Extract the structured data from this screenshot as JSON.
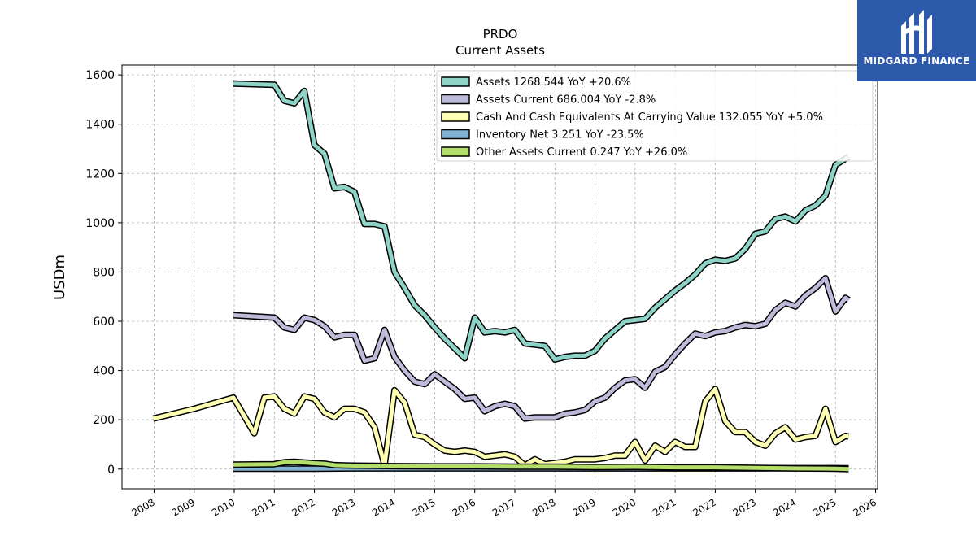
{
  "logo": {
    "text": "MIDGARD FINANCE",
    "icon": "midgard-monogram-icon",
    "background": "#2c59a9"
  },
  "chart_data": {
    "type": "line",
    "title": "PRDO",
    "subtitle": "Current  Assets",
    "xlabel": "",
    "ylabel": "USDm",
    "xlim": [
      2007.2,
      2026.05
    ],
    "ylim": [
      -80,
      1640
    ],
    "xticks": [
      "2008",
      "2009",
      "2010",
      "2011",
      "2012",
      "2013",
      "2014",
      "2015",
      "2016",
      "2017",
      "2018",
      "2019",
      "2020",
      "2021",
      "2022",
      "2023",
      "2024",
      "2025",
      "2026"
    ],
    "yticks": [
      0,
      200,
      400,
      600,
      800,
      1000,
      1200,
      1400,
      1600
    ],
    "grid": true,
    "legend_position": "top-right",
    "series": [
      {
        "name": "Assets",
        "legend": "Assets  1268.544 YoY +20.6%",
        "color": "#8dd3c7",
        "points": [
          [
            2009.98,
            1565
          ],
          [
            2011.0,
            1560
          ],
          [
            2011.25,
            1495
          ],
          [
            2011.5,
            1485
          ],
          [
            2011.75,
            1535
          ],
          [
            2012.0,
            1315
          ],
          [
            2012.25,
            1280
          ],
          [
            2012.5,
            1140
          ],
          [
            2012.75,
            1145
          ],
          [
            2013.0,
            1125
          ],
          [
            2013.25,
            995
          ],
          [
            2013.5,
            995
          ],
          [
            2013.75,
            985
          ],
          [
            2014.0,
            800
          ],
          [
            2014.25,
            735
          ],
          [
            2014.5,
            665
          ],
          [
            2014.75,
            625
          ],
          [
            2015.0,
            575
          ],
          [
            2015.25,
            530
          ],
          [
            2015.5,
            490
          ],
          [
            2015.75,
            450
          ],
          [
            2016.0,
            615
          ],
          [
            2016.25,
            555
          ],
          [
            2016.5,
            560
          ],
          [
            2016.75,
            555
          ],
          [
            2017.0,
            565
          ],
          [
            2017.25,
            510
          ],
          [
            2017.5,
            505
          ],
          [
            2017.75,
            500
          ],
          [
            2018.0,
            445
          ],
          [
            2018.25,
            455
          ],
          [
            2018.5,
            460
          ],
          [
            2018.75,
            460
          ],
          [
            2019.0,
            480
          ],
          [
            2019.25,
            530
          ],
          [
            2019.5,
            565
          ],
          [
            2019.75,
            600
          ],
          [
            2020.0,
            605
          ],
          [
            2020.25,
            610
          ],
          [
            2020.5,
            655
          ],
          [
            2020.75,
            690
          ],
          [
            2021.0,
            725
          ],
          [
            2021.25,
            755
          ],
          [
            2021.5,
            790
          ],
          [
            2021.75,
            835
          ],
          [
            2022.0,
            850
          ],
          [
            2022.25,
            845
          ],
          [
            2022.5,
            855
          ],
          [
            2022.75,
            895
          ],
          [
            2023.0,
            955
          ],
          [
            2023.25,
            965
          ],
          [
            2023.5,
            1015
          ],
          [
            2023.75,
            1025
          ],
          [
            2024.0,
            1005
          ],
          [
            2024.25,
            1050
          ],
          [
            2024.5,
            1070
          ],
          [
            2024.75,
            1110
          ],
          [
            2025.0,
            1235
          ],
          [
            2025.25,
            1260
          ],
          [
            2025.33,
            1268
          ]
        ]
      },
      {
        "name": "Assets Current",
        "legend": "Assets Current  686.004 YoY -2.8%",
        "color": "#bebada",
        "points": [
          [
            2009.98,
            625
          ],
          [
            2011.0,
            615
          ],
          [
            2011.25,
            575
          ],
          [
            2011.5,
            565
          ],
          [
            2011.75,
            615
          ],
          [
            2012.0,
            605
          ],
          [
            2012.25,
            580
          ],
          [
            2012.5,
            535
          ],
          [
            2012.75,
            545
          ],
          [
            2013.0,
            545
          ],
          [
            2013.25,
            440
          ],
          [
            2013.5,
            450
          ],
          [
            2013.75,
            565
          ],
          [
            2014.0,
            455
          ],
          [
            2014.25,
            400
          ],
          [
            2014.5,
            355
          ],
          [
            2014.75,
            345
          ],
          [
            2015.0,
            385
          ],
          [
            2015.25,
            355
          ],
          [
            2015.5,
            325
          ],
          [
            2015.75,
            285
          ],
          [
            2016.0,
            290
          ],
          [
            2016.25,
            235
          ],
          [
            2016.5,
            255
          ],
          [
            2016.75,
            265
          ],
          [
            2017.0,
            255
          ],
          [
            2017.25,
            205
          ],
          [
            2017.5,
            210
          ],
          [
            2017.75,
            210
          ],
          [
            2018.0,
            210
          ],
          [
            2018.25,
            225
          ],
          [
            2018.5,
            230
          ],
          [
            2018.75,
            240
          ],
          [
            2019.0,
            275
          ],
          [
            2019.25,
            290
          ],
          [
            2019.5,
            330
          ],
          [
            2019.75,
            360
          ],
          [
            2020.0,
            365
          ],
          [
            2020.25,
            330
          ],
          [
            2020.5,
            395
          ],
          [
            2020.75,
            415
          ],
          [
            2021.0,
            465
          ],
          [
            2021.25,
            510
          ],
          [
            2021.5,
            550
          ],
          [
            2021.75,
            540
          ],
          [
            2022.0,
            555
          ],
          [
            2022.25,
            560
          ],
          [
            2022.5,
            575
          ],
          [
            2022.75,
            585
          ],
          [
            2023.0,
            580
          ],
          [
            2023.25,
            590
          ],
          [
            2023.5,
            645
          ],
          [
            2023.75,
            675
          ],
          [
            2024.0,
            660
          ],
          [
            2024.25,
            705
          ],
          [
            2024.5,
            735
          ],
          [
            2024.75,
            775
          ],
          [
            2025.0,
            640
          ],
          [
            2025.25,
            695
          ],
          [
            2025.33,
            686
          ]
        ]
      },
      {
        "name": "Cash And Cash Equivalents At Carrying Value",
        "legend": "Cash And Cash Equivalents At Carrying Value  132.055 YoY +5.0%",
        "color": "#ffffb3",
        "points": [
          [
            2007.98,
            205
          ],
          [
            2009.0,
            245
          ],
          [
            2009.98,
            290
          ],
          [
            2010.25,
            215
          ],
          [
            2010.5,
            145
          ],
          [
            2010.75,
            290
          ],
          [
            2011.0,
            295
          ],
          [
            2011.25,
            245
          ],
          [
            2011.5,
            225
          ],
          [
            2011.75,
            295
          ],
          [
            2012.0,
            285
          ],
          [
            2012.25,
            230
          ],
          [
            2012.5,
            210
          ],
          [
            2012.75,
            245
          ],
          [
            2013.0,
            245
          ],
          [
            2013.25,
            230
          ],
          [
            2013.5,
            170
          ],
          [
            2013.75,
            15
          ],
          [
            2014.0,
            320
          ],
          [
            2014.25,
            270
          ],
          [
            2014.5,
            140
          ],
          [
            2014.75,
            130
          ],
          [
            2015.0,
            100
          ],
          [
            2015.25,
            75
          ],
          [
            2015.5,
            70
          ],
          [
            2015.75,
            75
          ],
          [
            2016.0,
            70
          ],
          [
            2016.25,
            50
          ],
          [
            2016.5,
            55
          ],
          [
            2016.75,
            60
          ],
          [
            2017.0,
            50
          ],
          [
            2017.25,
            15
          ],
          [
            2017.5,
            40
          ],
          [
            2017.75,
            20
          ],
          [
            2018.0,
            25
          ],
          [
            2018.25,
            30
          ],
          [
            2018.5,
            40
          ],
          [
            2018.75,
            40
          ],
          [
            2019.0,
            40
          ],
          [
            2019.25,
            45
          ],
          [
            2019.5,
            55
          ],
          [
            2019.75,
            55
          ],
          [
            2020.0,
            110
          ],
          [
            2020.25,
            35
          ],
          [
            2020.5,
            95
          ],
          [
            2020.75,
            70
          ],
          [
            2021.0,
            110
          ],
          [
            2021.25,
            90
          ],
          [
            2021.5,
            90
          ],
          [
            2021.75,
            275
          ],
          [
            2022.0,
            325
          ],
          [
            2022.25,
            195
          ],
          [
            2022.5,
            150
          ],
          [
            2022.75,
            150
          ],
          [
            2023.0,
            110
          ],
          [
            2023.25,
            95
          ],
          [
            2023.5,
            145
          ],
          [
            2023.75,
            170
          ],
          [
            2024.0,
            120
          ],
          [
            2024.25,
            130
          ],
          [
            2024.5,
            135
          ],
          [
            2024.75,
            245
          ],
          [
            2025.0,
            110
          ],
          [
            2025.25,
            135
          ],
          [
            2025.33,
            132
          ]
        ]
      },
      {
        "name": "Inventory Net",
        "legend": "Inventory Net  3.251 YoY -23.5%",
        "color": "#80b1d3",
        "points": [
          [
            2009.98,
            2
          ],
          [
            2011.0,
            2
          ],
          [
            2012.0,
            2
          ],
          [
            2013.0,
            3
          ],
          [
            2014.0,
            3
          ],
          [
            2015.0,
            3
          ],
          [
            2016.0,
            3
          ],
          [
            2017.0,
            3
          ],
          [
            2018.0,
            3
          ],
          [
            2019.0,
            3
          ],
          [
            2020.0,
            3
          ],
          [
            2021.0,
            3
          ],
          [
            2022.0,
            3
          ],
          [
            2023.0,
            3
          ],
          [
            2024.0,
            4
          ],
          [
            2025.0,
            4
          ],
          [
            2025.33,
            3.251
          ]
        ]
      },
      {
        "name": "Other Assets Current",
        "legend": "Other Assets Current  0.247 YoY +26.0%",
        "color": "#b3de69",
        "points": [
          [
            2009.98,
            18
          ],
          [
            2011.0,
            20
          ],
          [
            2011.25,
            28
          ],
          [
            2011.5,
            30
          ],
          [
            2011.75,
            27
          ],
          [
            2012.0,
            24
          ],
          [
            2012.25,
            22
          ],
          [
            2012.5,
            16
          ],
          [
            2012.75,
            15
          ],
          [
            2013.0,
            14
          ],
          [
            2013.5,
            13
          ],
          [
            2014.0,
            12
          ],
          [
            2015.0,
            11
          ],
          [
            2016.0,
            11
          ],
          [
            2017.0,
            10
          ],
          [
            2018.0,
            10
          ],
          [
            2019.0,
            8
          ],
          [
            2020.0,
            9
          ],
          [
            2021.0,
            7
          ],
          [
            2022.0,
            7
          ],
          [
            2023.0,
            5
          ],
          [
            2024.0,
            3
          ],
          [
            2025.0,
            2
          ],
          [
            2025.33,
            0.247
          ]
        ]
      }
    ]
  }
}
